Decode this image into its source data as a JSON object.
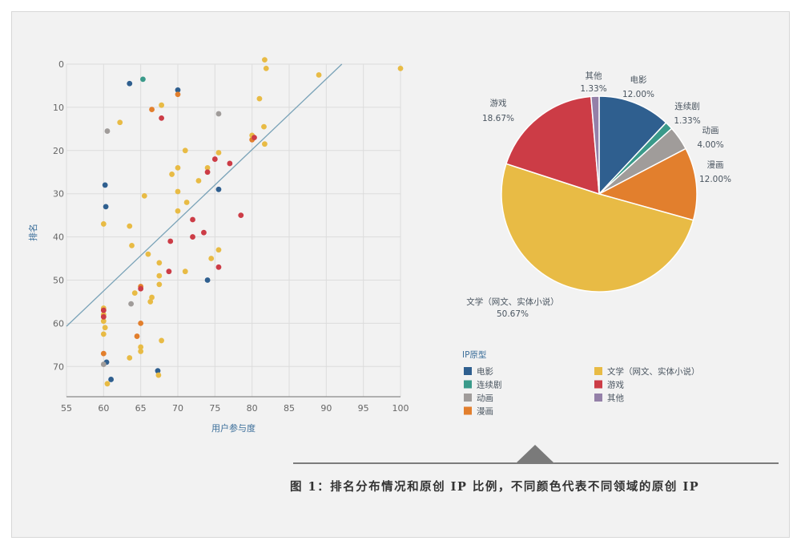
{
  "colors": {
    "movie": "#2f5f8f",
    "tv": "#3a9a8a",
    "anime": "#a09c9a",
    "manga": "#e27f2d",
    "literature": "#e8bb45",
    "game": "#cc3c46",
    "other": "#9480a8",
    "regression": "#7aa3b8",
    "grid": "#dcdcdc"
  },
  "caption": "图 1：排名分布情况和原创 IP 比例，不同颜色代表不同领域的原创 IP",
  "chart_data": [
    {
      "type": "scatter",
      "xlabel": "用户参与度",
      "ylabel": "排名",
      "xlim": [
        55,
        100
      ],
      "ylim": [
        0,
        77
      ],
      "y_inverted": true,
      "xticks": [
        55,
        60,
        65,
        70,
        75,
        80,
        85,
        90,
        95,
        100
      ],
      "yticks": [
        0,
        10,
        20,
        30,
        40,
        50,
        60,
        70
      ],
      "grid": true,
      "regression_line": [
        [
          55,
          60.7
        ],
        [
          92.1,
          0
        ]
      ],
      "series": [
        {
          "name": "电影",
          "color_key": "movie",
          "points": [
            [
              63.5,
              4.5
            ],
            [
              70,
              6
            ],
            [
              60.2,
              28
            ],
            [
              60.3,
              33
            ],
            [
              75.5,
              29
            ],
            [
              74,
              50
            ],
            [
              60.4,
              69
            ],
            [
              67.3,
              71
            ],
            [
              61,
              73
            ]
          ]
        },
        {
          "name": "连续剧",
          "color_key": "tv",
          "points": [
            [
              65.3,
              3.5
            ]
          ]
        },
        {
          "name": "动画",
          "color_key": "anime",
          "points": [
            [
              60.5,
              15.5
            ],
            [
              75.5,
              11.5
            ],
            [
              63.7,
              55.5
            ],
            [
              60,
              69.5
            ]
          ]
        },
        {
          "name": "漫画",
          "color_key": "manga",
          "points": [
            [
              70,
              7
            ],
            [
              66.5,
              10.5
            ],
            [
              80,
              17.5
            ],
            [
              65,
              51.5
            ],
            [
              65,
              60
            ],
            [
              64.5,
              63
            ],
            [
              60,
              67
            ]
          ]
        },
        {
          "name": "文学（网文、实体小说）",
          "color_key": "literature",
          "points": [
            [
              81.7,
              -1
            ],
            [
              81.9,
              1
            ],
            [
              100,
              1
            ],
            [
              89,
              2.5
            ],
            [
              81,
              8
            ],
            [
              67.8,
              9.5
            ],
            [
              62.2,
              13.5
            ],
            [
              81.6,
              14.5
            ],
            [
              80,
              16.5
            ],
            [
              81.7,
              18.5
            ],
            [
              71,
              20
            ],
            [
              75.5,
              20.5
            ],
            [
              74,
              24
            ],
            [
              70,
              24
            ],
            [
              69.2,
              25.5
            ],
            [
              72.8,
              27
            ],
            [
              65.5,
              30.5
            ],
            [
              70,
              29.5
            ],
            [
              71.2,
              32
            ],
            [
              70,
              34
            ],
            [
              60,
              37
            ],
            [
              63.5,
              37.5
            ],
            [
              63.8,
              42
            ],
            [
              75.5,
              43
            ],
            [
              66,
              44
            ],
            [
              74.5,
              45
            ],
            [
              67.5,
              46
            ],
            [
              71,
              48
            ],
            [
              67.5,
              49
            ],
            [
              67.5,
              51
            ],
            [
              64.2,
              53
            ],
            [
              66.5,
              54
            ],
            [
              66.3,
              55
            ],
            [
              60,
              56.5
            ],
            [
              60,
              58
            ],
            [
              60,
              59.5
            ],
            [
              60.2,
              61
            ],
            [
              60,
              62.5
            ],
            [
              67.8,
              64
            ],
            [
              65,
              65.5
            ],
            [
              65,
              66.5
            ],
            [
              63.5,
              68
            ],
            [
              67.4,
              72
            ],
            [
              60.5,
              74
            ]
          ]
        },
        {
          "name": "游戏",
          "color_key": "game",
          "points": [
            [
              67.8,
              12.5
            ],
            [
              80.3,
              17
            ],
            [
              75,
              22
            ],
            [
              77,
              23
            ],
            [
              74,
              25
            ],
            [
              72,
              36
            ],
            [
              78.5,
              35
            ],
            [
              72,
              40
            ],
            [
              73.5,
              39
            ],
            [
              69,
              41
            ],
            [
              75.5,
              47
            ],
            [
              68.8,
              48
            ],
            [
              65,
              52
            ],
            [
              60,
              58.5
            ],
            [
              60,
              57
            ]
          ]
        },
        {
          "name": "其他",
          "color_key": "other",
          "points": []
        }
      ]
    },
    {
      "type": "pie",
      "slices": [
        {
          "label": "电影",
          "value": 12.0,
          "display": "12.00%",
          "color_key": "movie"
        },
        {
          "label": "连续剧",
          "value": 1.33,
          "display": "1.33%",
          "color_key": "tv"
        },
        {
          "label": "动画",
          "value": 4.0,
          "display": "4.00%",
          "color_key": "anime"
        },
        {
          "label": "漫画",
          "value": 12.0,
          "display": "12.00%",
          "color_key": "manga"
        },
        {
          "label": "文学（网文、实体小说）",
          "value": 50.67,
          "display": "50.67%",
          "color_key": "literature"
        },
        {
          "label": "游戏",
          "value": 18.67,
          "display": "18.67%",
          "color_key": "game"
        },
        {
          "label": "其他",
          "value": 1.33,
          "display": "1.33%",
          "color_key": "other"
        }
      ],
      "legend": {
        "title": "IP原型",
        "placement": "bottom",
        "items": [
          {
            "label": "电影",
            "color_key": "movie"
          },
          {
            "label": "连续剧",
            "color_key": "tv"
          },
          {
            "label": "动画",
            "color_key": "anime"
          },
          {
            "label": "漫画",
            "color_key": "manga"
          },
          {
            "label": "文学（网文、实体小说）",
            "color_key": "literature"
          },
          {
            "label": "游戏",
            "color_key": "game"
          },
          {
            "label": "其他",
            "color_key": "other"
          }
        ]
      }
    }
  ]
}
